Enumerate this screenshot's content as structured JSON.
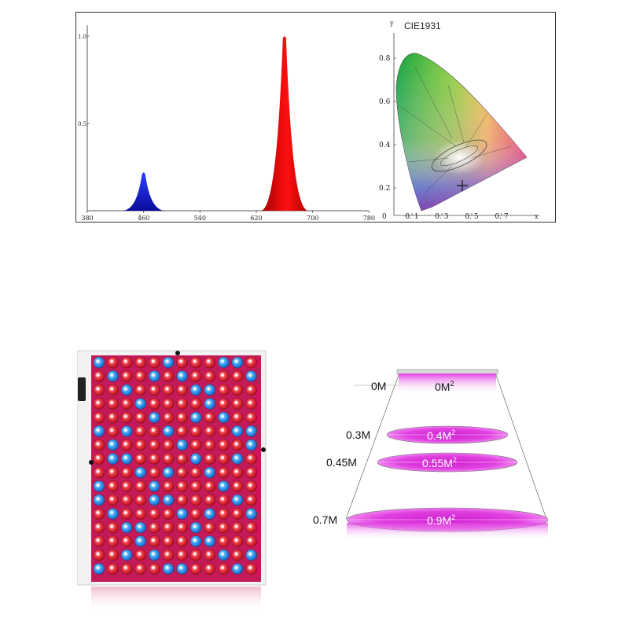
{
  "spectrum": {
    "chart_data": {
      "type": "line",
      "title": "",
      "xlabel": "",
      "ylabel": "",
      "xlim": [
        380,
        800
      ],
      "ylim": [
        0,
        1.0
      ],
      "x_ticks": [
        "380",
        "460",
        "540",
        "620",
        "700",
        "780"
      ],
      "y_ticks": [
        "1.0",
        "0.5"
      ],
      "series": [
        {
          "name": "Blue",
          "color": "#1020c8",
          "peak_nm": 460,
          "relative_intensity": 0.22
        },
        {
          "name": "Red",
          "color": "#d01010",
          "peak_nm": 660,
          "relative_intensity": 1.0
        }
      ]
    }
  },
  "cie": {
    "title": "CIE1931",
    "x_axis_label": "x",
    "y_axis_label": "y",
    "origin_label": "0",
    "x_ticks": [
      "0. 1",
      "0. 3",
      "0. 5",
      "0. 7"
    ],
    "y_ticks": [
      "0.8",
      "0.6",
      "0.4",
      "0.2"
    ]
  },
  "coverage": {
    "rows": [
      {
        "height": "0M",
        "area": "0M",
        "exp": "2"
      },
      {
        "height": "0.3M",
        "area": "0.4M",
        "exp": "2"
      },
      {
        "height": "0.45M",
        "area": "0.55M",
        "exp": "2"
      },
      {
        "height": "0.7M",
        "area": "0.9M",
        "exp": "2"
      }
    ]
  },
  "colors": {
    "blue_led": "#2a8ef0",
    "red_led": "#e0303a",
    "panel_bg": "#d02068",
    "magenta": "#e030e0"
  }
}
